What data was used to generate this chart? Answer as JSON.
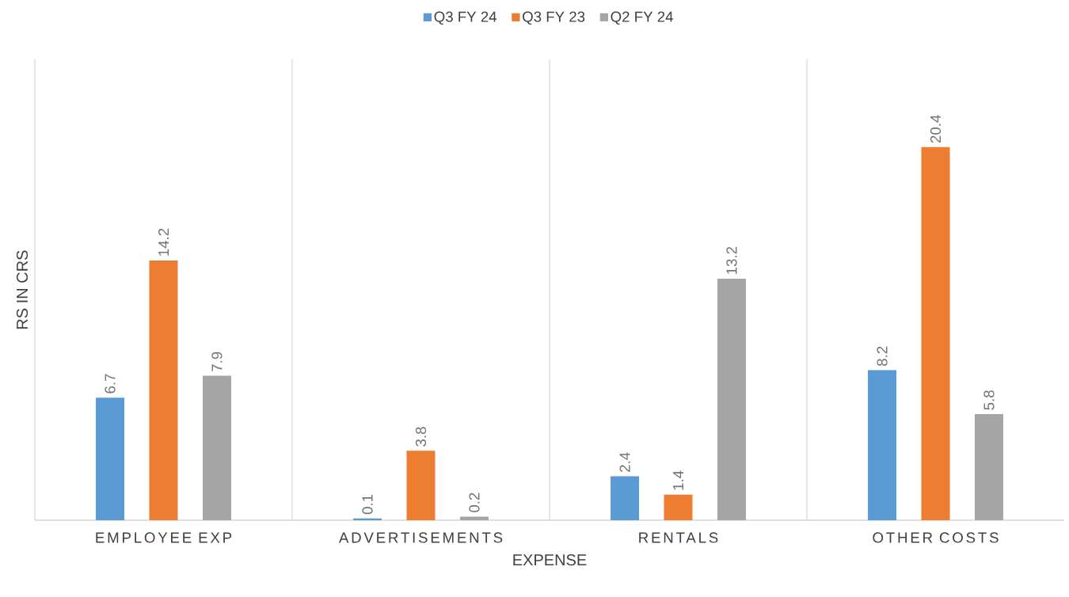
{
  "chart_data": {
    "type": "bar",
    "xlabel": "EXPENSE",
    "ylabel": "RS IN CRS",
    "categories": [
      "EMPLOYEE EXP",
      "ADVERTISEMENTS",
      "RENTALS",
      "OTHER COSTS"
    ],
    "series": [
      {
        "name": "Q3 FY 24",
        "color": "#5b9bd5",
        "values": [
          6.7,
          0.1,
          2.4,
          8.2
        ]
      },
      {
        "name": "Q3 FY 23",
        "color": "#ed7d31",
        "values": [
          14.2,
          3.8,
          1.4,
          20.4
        ]
      },
      {
        "name": "Q2 FY 24",
        "color": "#a5a5a5",
        "values": [
          7.9,
          0.2,
          13.2,
          5.8
        ]
      }
    ],
    "data_labels": true,
    "grid": "x",
    "legend": "top"
  }
}
